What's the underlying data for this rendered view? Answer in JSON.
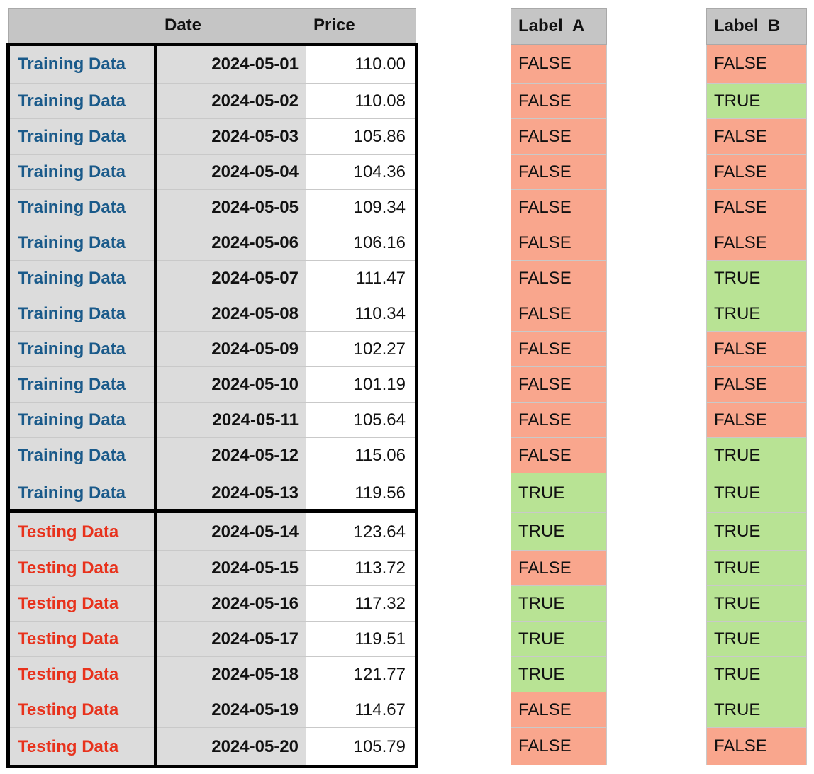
{
  "main_table": {
    "headers": [
      "",
      "Date",
      "Price"
    ],
    "rows": [
      {
        "type": "Training Data",
        "group": "train",
        "date": "2024-05-01",
        "price": "110.00"
      },
      {
        "type": "Training Data",
        "group": "train",
        "date": "2024-05-02",
        "price": "110.08"
      },
      {
        "type": "Training Data",
        "group": "train",
        "date": "2024-05-03",
        "price": "105.86"
      },
      {
        "type": "Training Data",
        "group": "train",
        "date": "2024-05-04",
        "price": "104.36"
      },
      {
        "type": "Training Data",
        "group": "train",
        "date": "2024-05-05",
        "price": "109.34"
      },
      {
        "type": "Training Data",
        "group": "train",
        "date": "2024-05-06",
        "price": "106.16"
      },
      {
        "type": "Training Data",
        "group": "train",
        "date": "2024-05-07",
        "price": "111.47"
      },
      {
        "type": "Training Data",
        "group": "train",
        "date": "2024-05-08",
        "price": "110.34"
      },
      {
        "type": "Training Data",
        "group": "train",
        "date": "2024-05-09",
        "price": "102.27"
      },
      {
        "type": "Training Data",
        "group": "train",
        "date": "2024-05-10",
        "price": "101.19"
      },
      {
        "type": "Training Data",
        "group": "train",
        "date": "2024-05-11",
        "price": "105.64"
      },
      {
        "type": "Training Data",
        "group": "train",
        "date": "2024-05-12",
        "price": "115.06"
      },
      {
        "type": "Training Data",
        "group": "train",
        "date": "2024-05-13",
        "price": "119.56"
      },
      {
        "type": "Testing Data",
        "group": "test",
        "date": "2024-05-14",
        "price": "123.64"
      },
      {
        "type": "Testing Data",
        "group": "test",
        "date": "2024-05-15",
        "price": "113.72"
      },
      {
        "type": "Testing Data",
        "group": "test",
        "date": "2024-05-16",
        "price": "117.32"
      },
      {
        "type": "Testing Data",
        "group": "test",
        "date": "2024-05-17",
        "price": "119.51"
      },
      {
        "type": "Testing Data",
        "group": "test",
        "date": "2024-05-18",
        "price": "121.77"
      },
      {
        "type": "Testing Data",
        "group": "test",
        "date": "2024-05-19",
        "price": "114.67"
      },
      {
        "type": "Testing Data",
        "group": "test",
        "date": "2024-05-20",
        "price": "105.79"
      }
    ]
  },
  "label_a": {
    "header": "Label_A",
    "values": [
      "FALSE",
      "FALSE",
      "FALSE",
      "FALSE",
      "FALSE",
      "FALSE",
      "FALSE",
      "FALSE",
      "FALSE",
      "FALSE",
      "FALSE",
      "FALSE",
      "TRUE",
      "TRUE",
      "FALSE",
      "TRUE",
      "TRUE",
      "TRUE",
      "FALSE",
      "FALSE"
    ]
  },
  "label_b": {
    "header": "Label_B",
    "values": [
      "FALSE",
      "TRUE",
      "FALSE",
      "FALSE",
      "FALSE",
      "FALSE",
      "TRUE",
      "TRUE",
      "FALSE",
      "FALSE",
      "FALSE",
      "TRUE",
      "TRUE",
      "TRUE",
      "TRUE",
      "TRUE",
      "TRUE",
      "TRUE",
      "TRUE",
      "FALSE"
    ]
  },
  "colors": {
    "training_text": "#1a5a8a",
    "testing_text": "#e8321c",
    "true_fill": "#b8e394",
    "false_fill": "#f9a68d",
    "header_fill": "#c5c5c5",
    "gray_fill": "#dcdcdc"
  }
}
